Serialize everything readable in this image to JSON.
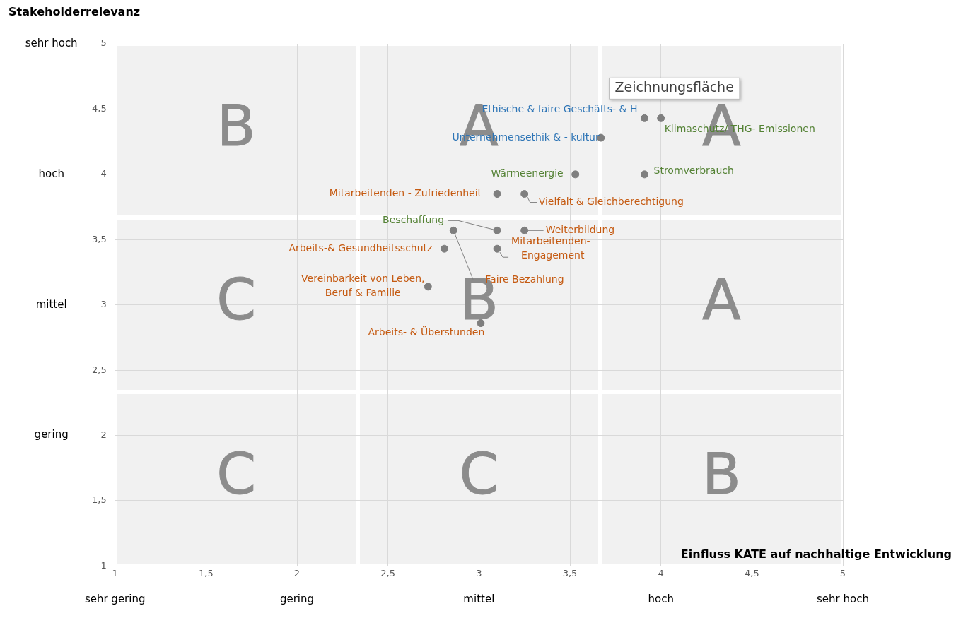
{
  "chart_data": {
    "type": "scatter",
    "xlabel": "Einfluss KATE auf nachhaltige Entwicklung",
    "ylabel": "Stakeholderrelevanz",
    "x": [
      3.91,
      4.0,
      3.67,
      3.53,
      3.91,
      3.1,
      3.25,
      3.1,
      3.25,
      2.86,
      2.81,
      3.1,
      2.72,
      3.01
    ],
    "series": [
      {
        "color": "#7f7f7f",
        "values": [
          4.43,
          4.43,
          4.28,
          4.0,
          4.0,
          3.85,
          3.85,
          3.57,
          3.57,
          3.57,
          3.43,
          3.43,
          3.14,
          2.86
        ]
      }
    ],
    "xlim": [
      1,
      5
    ],
    "ylim": [
      1,
      5
    ],
    "xticks": [
      1,
      {
        "value": 1.5,
        "label": "1,5"
      },
      2,
      {
        "value": 2.5,
        "label": "2,5"
      },
      3,
      {
        "value": 3.5,
        "label": "3,5"
      },
      4,
      {
        "value": 4.5,
        "label": "4,5"
      },
      5
    ],
    "yticks": [
      1,
      {
        "value": 1.5,
        "label": "1,5"
      },
      2,
      {
        "value": 2.5,
        "label": "2,5"
      },
      3,
      {
        "value": 3.5,
        "label": "3,5"
      },
      4,
      {
        "value": 4.5,
        "label": "4,5"
      },
      5
    ],
    "grid": true,
    "marker": "circle",
    "annotations": [
      {
        "text": "Ethische & faire Geschäfts- & H",
        "x": 3.91,
        "y": 4.43
      },
      {
        "text": "Klimaschutz/ THG- Emissionen",
        "x": 4.0,
        "y": 4.43
      },
      {
        "text": "Unternehmensethik & - kultur",
        "x": 3.67,
        "y": 4.28
      },
      {
        "text": "Wärmeenergie",
        "x": 3.53,
        "y": 4.0
      },
      {
        "text": "Stromverbrauch",
        "x": 3.91,
        "y": 4.0
      },
      {
        "text": "Mitarbeitenden - Zufriedenheit",
        "x": 3.1,
        "y": 3.85
      },
      {
        "text": "Vielfalt & Gleichberechtigung",
        "x": 3.25,
        "y": 3.85
      },
      {
        "text": "Beschaffung",
        "x": 3.1,
        "y": 3.57
      },
      {
        "text": "Weiterbildung",
        "x": 3.25,
        "y": 3.57
      },
      {
        "text": "Faire Bezahlung",
        "x": 2.86,
        "y": 3.57
      },
      {
        "text": "Arbeits-& Gesundheitsschutz",
        "x": 2.81,
        "y": 3.43
      },
      {
        "text": "Mitarbeitenden-\nEngagement",
        "x": 3.1,
        "y": 3.43
      },
      {
        "text": "Vereinbarkeit von Leben,\nBeruf & Familie",
        "x": 2.72,
        "y": 3.14
      },
      {
        "text": "Arbeits- & Überstunden",
        "x": 3.01,
        "y": 2.86
      },
      "B",
      "A",
      "A",
      "C",
      "B",
      "A",
      "C",
      "C",
      "B",
      "sehr gering",
      "gering",
      "mittel",
      "hoch",
      "sehr hoch",
      "sehr hoch",
      "hoch",
      "mittel",
      "gering",
      "Zeichnungsfläche"
    ]
  }
}
